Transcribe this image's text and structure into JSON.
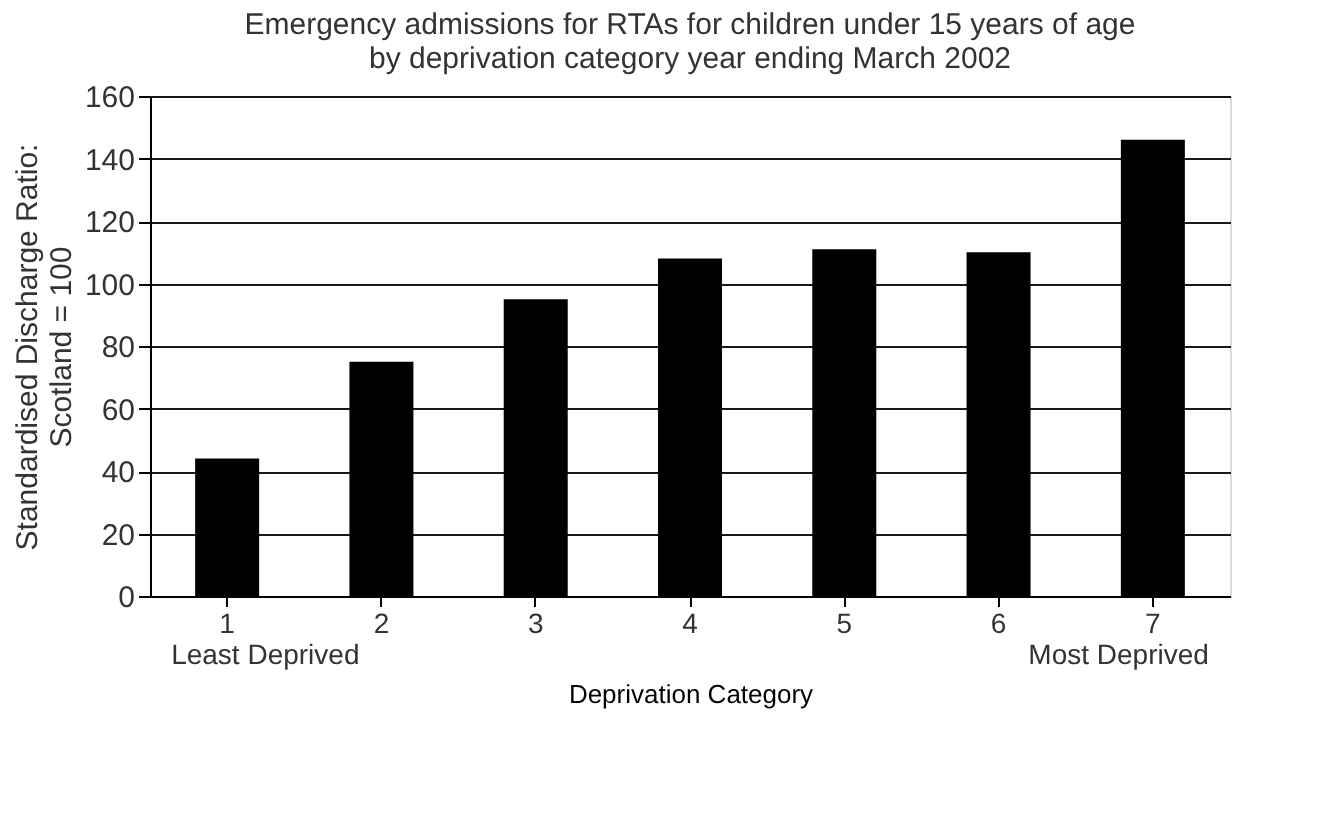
{
  "chart_data": {
    "type": "bar",
    "title": [
      "Emergency admissions for RTAs for children under 15 years of age",
      "by deprivation category year ending March 2002"
    ],
    "xlabel": "Deprivation Category",
    "ylabel": [
      "Standardised Discharge Ratio:",
      "Scotland = 100"
    ],
    "categories": [
      "1",
      "2",
      "3",
      "4",
      "5",
      "6",
      "7"
    ],
    "values": [
      44,
      75,
      95,
      108,
      111,
      110,
      146
    ],
    "color": "#000000",
    "ylim": [
      0,
      160
    ],
    "yticks": [
      0,
      20,
      40,
      60,
      80,
      100,
      120,
      140,
      160
    ],
    "grid": "y",
    "annotations": [
      "Least Deprived",
      "Most Deprived"
    ]
  }
}
